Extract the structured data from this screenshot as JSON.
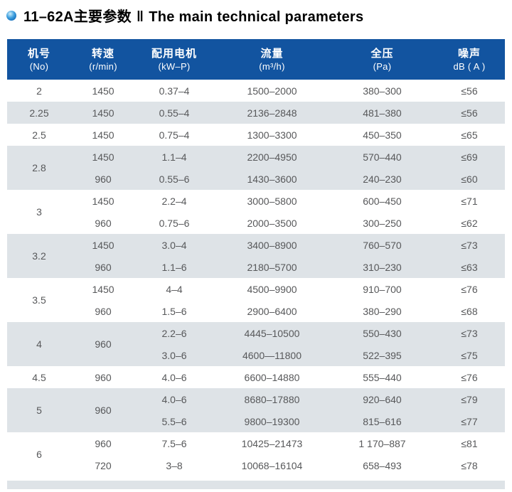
{
  "title": {
    "cn": "11–62A主要参数",
    "separator": "‖",
    "en": "The main technical parameters"
  },
  "colors": {
    "header_bg": "#1254a0",
    "header_text": "#ffffff",
    "row_shaded": "#dee3e7",
    "row_text": "#57585a",
    "accent": "#1f7fd0"
  },
  "table": {
    "columns": [
      {
        "cn": "机号",
        "en": "(No)"
      },
      {
        "cn": "转速",
        "en": "(r/min)"
      },
      {
        "cn": "配用电机",
        "en": "(kW–P)"
      },
      {
        "cn": "流量",
        "en": "(m³/h)"
      },
      {
        "cn": "全压",
        "en": "(Pa)"
      },
      {
        "cn": "噪声",
        "en": "dB ( A )"
      }
    ],
    "groups": [
      {
        "no": "2",
        "shaded": false,
        "rows": [
          {
            "speed": "1450",
            "motor": "0.37–4",
            "flow": "1500–2000",
            "pressure": "380–300",
            "noise": "≤56"
          }
        ]
      },
      {
        "no": "2.25",
        "shaded": true,
        "rows": [
          {
            "speed": "1450",
            "motor": "0.55–4",
            "flow": "2136–2848",
            "pressure": "481–380",
            "noise": "≤56"
          }
        ]
      },
      {
        "no": "2.5",
        "shaded": false,
        "rows": [
          {
            "speed": "1450",
            "motor": "0.75–4",
            "flow": "1300–3300",
            "pressure": "450–350",
            "noise": "≤65"
          }
        ]
      },
      {
        "no": "2.8",
        "shaded": true,
        "rows": [
          {
            "speed": "1450",
            "motor": "1.1–4",
            "flow": "2200–4950",
            "pressure": "570–440",
            "noise": "≤69"
          },
          {
            "speed": "960",
            "motor": "0.55–6",
            "flow": "1430–3600",
            "pressure": "240–230",
            "noise": "≤60"
          }
        ]
      },
      {
        "no": "3",
        "shaded": false,
        "rows": [
          {
            "speed": "1450",
            "motor": "2.2–4",
            "flow": "3000–5800",
            "pressure": "600–450",
            "noise": "≤71"
          },
          {
            "speed": "960",
            "motor": "0.75–6",
            "flow": "2000–3500",
            "pressure": "300–250",
            "noise": "≤62"
          }
        ]
      },
      {
        "no": "3.2",
        "shaded": true,
        "rows": [
          {
            "speed": "1450",
            "motor": "3.0–4",
            "flow": "3400–8900",
            "pressure": "760–570",
            "noise": "≤73"
          },
          {
            "speed": "960",
            "motor": "1.1–6",
            "flow": "2180–5700",
            "pressure": "310–230",
            "noise": "≤63"
          }
        ]
      },
      {
        "no": "3.5",
        "shaded": false,
        "rows": [
          {
            "speed": "1450",
            "motor": "4–4",
            "flow": "4500–9900",
            "pressure": "910–700",
            "noise": "≤76"
          },
          {
            "speed": "960",
            "motor": "1.5–6",
            "flow": "2900–6400",
            "pressure": "380–290",
            "noise": "≤68"
          }
        ]
      },
      {
        "no": "4",
        "shaded": true,
        "speed": "960",
        "rows": [
          {
            "motor": "2.2–6",
            "flow": "4445–10500",
            "pressure": "550–430",
            "noise": "≤73"
          },
          {
            "motor": "3.0–6",
            "flow": "4600—11800",
            "pressure": "522–395",
            "noise": "≤75"
          }
        ]
      },
      {
        "no": "4.5",
        "shaded": false,
        "rows": [
          {
            "speed": "960",
            "motor": "4.0–6",
            "flow": "6600–14880",
            "pressure": "555–440",
            "noise": "≤76"
          }
        ]
      },
      {
        "no": "5",
        "shaded": true,
        "speed": "960",
        "rows": [
          {
            "motor": "4.0–6",
            "flow": "8680–17880",
            "pressure": "920–640",
            "noise": "≤79"
          },
          {
            "motor": "5.5–6",
            "flow": "9800–19300",
            "pressure": "815–616",
            "noise": "≤77"
          }
        ]
      },
      {
        "no": "6",
        "shaded": false,
        "rows": [
          {
            "speed": "960",
            "motor": "7.5–6",
            "flow": "10425–21473",
            "pressure": "1 170–887",
            "noise": "≤81"
          },
          {
            "speed": "720",
            "motor": "3–8",
            "flow": "10068–16104",
            "pressure": "658–493",
            "noise": "≤78"
          }
        ]
      }
    ]
  }
}
